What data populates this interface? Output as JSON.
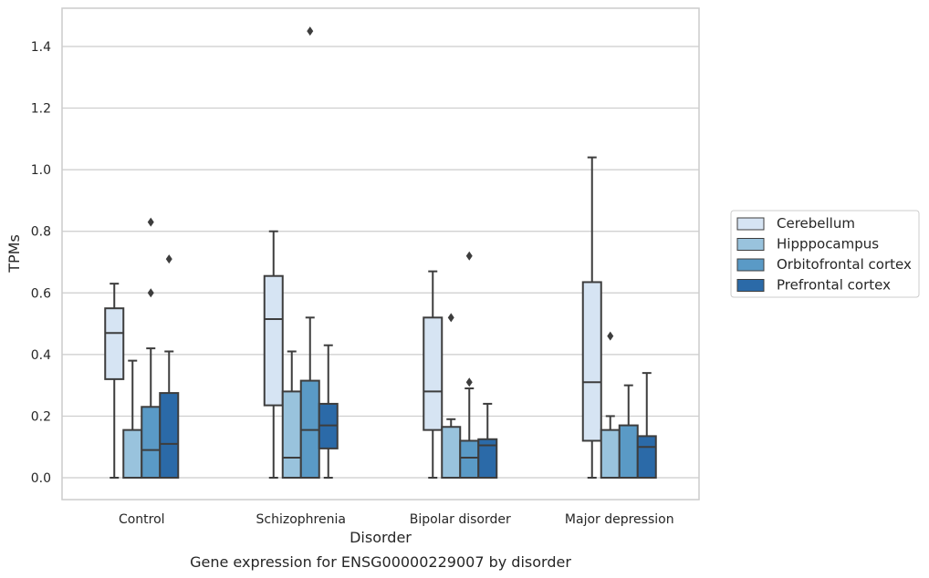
{
  "chart_data": {
    "type": "box",
    "caption": "Gene expression for ENSG00000229007 by disorder",
    "xlabel": "Disorder",
    "ylabel": "TPMs",
    "ylim": [
      -0.07,
      1.52
    ],
    "yticks": [
      0.0,
      0.2,
      0.4,
      0.6,
      0.8,
      1.0,
      1.2,
      1.4
    ],
    "ytick_labels": [
      "0.0",
      "0.2",
      "0.4",
      "0.6",
      "0.8",
      "1.0",
      "1.2",
      "1.4"
    ],
    "grid": "horizontal",
    "legend_position": "right",
    "categories": [
      "Control",
      "Schizophrenia",
      "Bipolar disorder",
      "Major depression"
    ],
    "series": [
      {
        "name": "Cerebellum",
        "color": "#d6e4f3",
        "boxes": [
          {
            "whislo": 0.0,
            "q1": 0.32,
            "med": 0.47,
            "q3": 0.55,
            "whishi": 0.63,
            "fliers": []
          },
          {
            "whislo": 0.0,
            "q1": 0.235,
            "med": 0.515,
            "q3": 0.655,
            "whishi": 0.8,
            "fliers": []
          },
          {
            "whislo": 0.0,
            "q1": 0.155,
            "med": 0.28,
            "q3": 0.52,
            "whishi": 0.67,
            "fliers": []
          },
          {
            "whislo": 0.0,
            "q1": 0.12,
            "med": 0.31,
            "q3": 0.635,
            "whishi": 1.04,
            "fliers": []
          }
        ]
      },
      {
        "name": "Hipppocampus",
        "color": "#99c3dd",
        "boxes": [
          {
            "whislo": 0.0,
            "q1": 0.0,
            "med": 0.0,
            "q3": 0.155,
            "whishi": 0.38,
            "fliers": []
          },
          {
            "whislo": 0.0,
            "q1": 0.0,
            "med": 0.065,
            "q3": 0.28,
            "whishi": 0.41,
            "fliers": []
          },
          {
            "whislo": 0.0,
            "q1": 0.0,
            "med": 0.0,
            "q3": 0.165,
            "whishi": 0.19,
            "fliers": [
              0.52
            ]
          },
          {
            "whislo": 0.0,
            "q1": 0.0,
            "med": 0.0,
            "q3": 0.155,
            "whishi": 0.2,
            "fliers": [
              0.46
            ]
          }
        ]
      },
      {
        "name": "Orbitofrontal cortex",
        "color": "#5a9ac6",
        "boxes": [
          {
            "whislo": 0.0,
            "q1": 0.0,
            "med": 0.09,
            "q3": 0.23,
            "whishi": 0.42,
            "fliers": [
              0.6,
              0.83
            ]
          },
          {
            "whislo": 0.0,
            "q1": 0.0,
            "med": 0.155,
            "q3": 0.315,
            "whishi": 0.52,
            "fliers": [
              1.45
            ]
          },
          {
            "whislo": 0.0,
            "q1": 0.0,
            "med": 0.065,
            "q3": 0.12,
            "whishi": 0.29,
            "fliers": [
              0.31,
              0.72
            ]
          },
          {
            "whislo": 0.0,
            "q1": 0.0,
            "med": 0.0,
            "q3": 0.17,
            "whishi": 0.3,
            "fliers": []
          }
        ]
      },
      {
        "name": "Prefrontal cortex",
        "color": "#2b6aa8",
        "boxes": [
          {
            "whislo": 0.0,
            "q1": 0.0,
            "med": 0.11,
            "q3": 0.275,
            "whishi": 0.41,
            "fliers": [
              0.71
            ]
          },
          {
            "whislo": 0.0,
            "q1": 0.095,
            "med": 0.17,
            "q3": 0.24,
            "whishi": 0.43,
            "fliers": []
          },
          {
            "whislo": 0.0,
            "q1": 0.0,
            "med": 0.105,
            "q3": 0.125,
            "whishi": 0.24,
            "fliers": []
          },
          {
            "whislo": 0.0,
            "q1": 0.0,
            "med": 0.1,
            "q3": 0.135,
            "whishi": 0.34,
            "fliers": []
          }
        ]
      }
    ]
  }
}
